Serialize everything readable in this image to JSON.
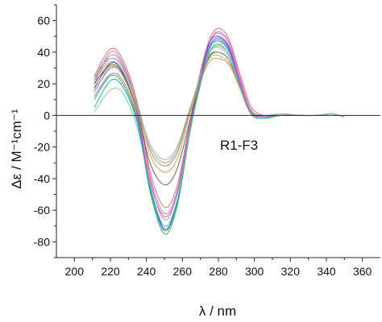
{
  "chart_data": {
    "type": "line",
    "title": "",
    "xlabel": "λ / nm",
    "ylabel": "Δε / M⁻¹cm⁻¹",
    "annotation": "R1-F3",
    "xlim": [
      190,
      370
    ],
    "ylim": [
      -90,
      70
    ],
    "xticks": [
      200,
      220,
      240,
      260,
      280,
      300,
      320,
      340,
      360
    ],
    "yticks": [
      -80,
      -60,
      -40,
      -20,
      0,
      20,
      40,
      60
    ],
    "zero_line": true,
    "grid": false,
    "legend": "none",
    "x": [
      211,
      220,
      227,
      235,
      242,
      250,
      257,
      264,
      270,
      275,
      280,
      286,
      292,
      298,
      305,
      315,
      325,
      335,
      343,
      350
    ],
    "series": [
      {
        "color": "#e06666",
        "values": [
          25,
          42,
          35,
          8,
          -35,
          -58,
          -45,
          -5,
          28,
          48,
          55,
          48,
          26,
          6,
          0,
          1,
          0,
          0,
          1,
          -1
        ]
      },
      {
        "color": "#cc66cc",
        "values": [
          22,
          40,
          33,
          6,
          -38,
          -62,
          -48,
          -7,
          26,
          46,
          53,
          46,
          24,
          4,
          -1,
          0,
          0,
          0,
          1,
          -1
        ]
      },
      {
        "color": "#ff66cc",
        "values": [
          20,
          38,
          31,
          4,
          -40,
          -66,
          -50,
          -8,
          25,
          46,
          52,
          45,
          23,
          3,
          -1,
          0,
          0,
          0,
          1,
          -1
        ]
      },
      {
        "color": "#3333cc",
        "values": [
          17,
          33,
          27,
          1,
          -45,
          -72,
          -55,
          -10,
          24,
          46,
          50,
          43,
          21,
          2,
          -1,
          0,
          0,
          0,
          1,
          -1
        ]
      },
      {
        "color": "#6666ff",
        "values": [
          15,
          30,
          25,
          0,
          -46,
          -70,
          -54,
          -10,
          23,
          44,
          49,
          42,
          20,
          2,
          -1,
          0,
          0,
          0,
          1,
          -1
        ]
      },
      {
        "color": "#33aa33",
        "values": [
          10,
          25,
          20,
          -4,
          -48,
          -75,
          -58,
          -12,
          20,
          40,
          45,
          38,
          18,
          1,
          -2,
          0,
          0,
          0,
          1,
          -1
        ]
      },
      {
        "color": "#00aaaa",
        "values": [
          5,
          22,
          18,
          -5,
          -46,
          -73,
          -56,
          -11,
          20,
          42,
          47,
          40,
          19,
          1,
          -2,
          0,
          0,
          0,
          1,
          -1
        ]
      },
      {
        "color": "#555555",
        "values": [
          20,
          32,
          26,
          2,
          -30,
          -44,
          -34,
          -4,
          22,
          37,
          40,
          35,
          18,
          2,
          0,
          0,
          0,
          0,
          1,
          -1
        ]
      },
      {
        "color": "#888888",
        "values": [
          24,
          36,
          30,
          6,
          -22,
          -32,
          -24,
          2,
          24,
          38,
          40,
          35,
          19,
          3,
          0,
          1,
          0,
          0,
          1,
          -1
        ]
      },
      {
        "color": "#99aa66",
        "values": [
          22,
          34,
          28,
          4,
          -20,
          -30,
          -22,
          3,
          22,
          36,
          38,
          33,
          18,
          2,
          0,
          0,
          0,
          0,
          1,
          -1
        ]
      },
      {
        "color": "#cc9933",
        "values": [
          18,
          31,
          25,
          2,
          -25,
          -36,
          -28,
          0,
          21,
          34,
          36,
          32,
          17,
          2,
          0,
          0,
          0,
          0,
          1,
          -1
        ]
      },
      {
        "color": "#aaaaaa",
        "values": [
          25,
          38,
          32,
          7,
          -18,
          -28,
          -20,
          4,
          25,
          40,
          43,
          37,
          20,
          3,
          0,
          1,
          0,
          0,
          1,
          -1
        ]
      },
      {
        "color": "#9966cc",
        "values": [
          12,
          26,
          22,
          -2,
          -42,
          -64,
          -50,
          -9,
          22,
          43,
          48,
          41,
          20,
          2,
          -1,
          0,
          0,
          0,
          1,
          -1
        ]
      },
      {
        "color": "#66cc99",
        "values": [
          2,
          16,
          14,
          -8,
          -44,
          -70,
          -54,
          -11,
          19,
          39,
          44,
          38,
          17,
          1,
          -2,
          0,
          0,
          0,
          1,
          -1
        ]
      }
    ]
  }
}
